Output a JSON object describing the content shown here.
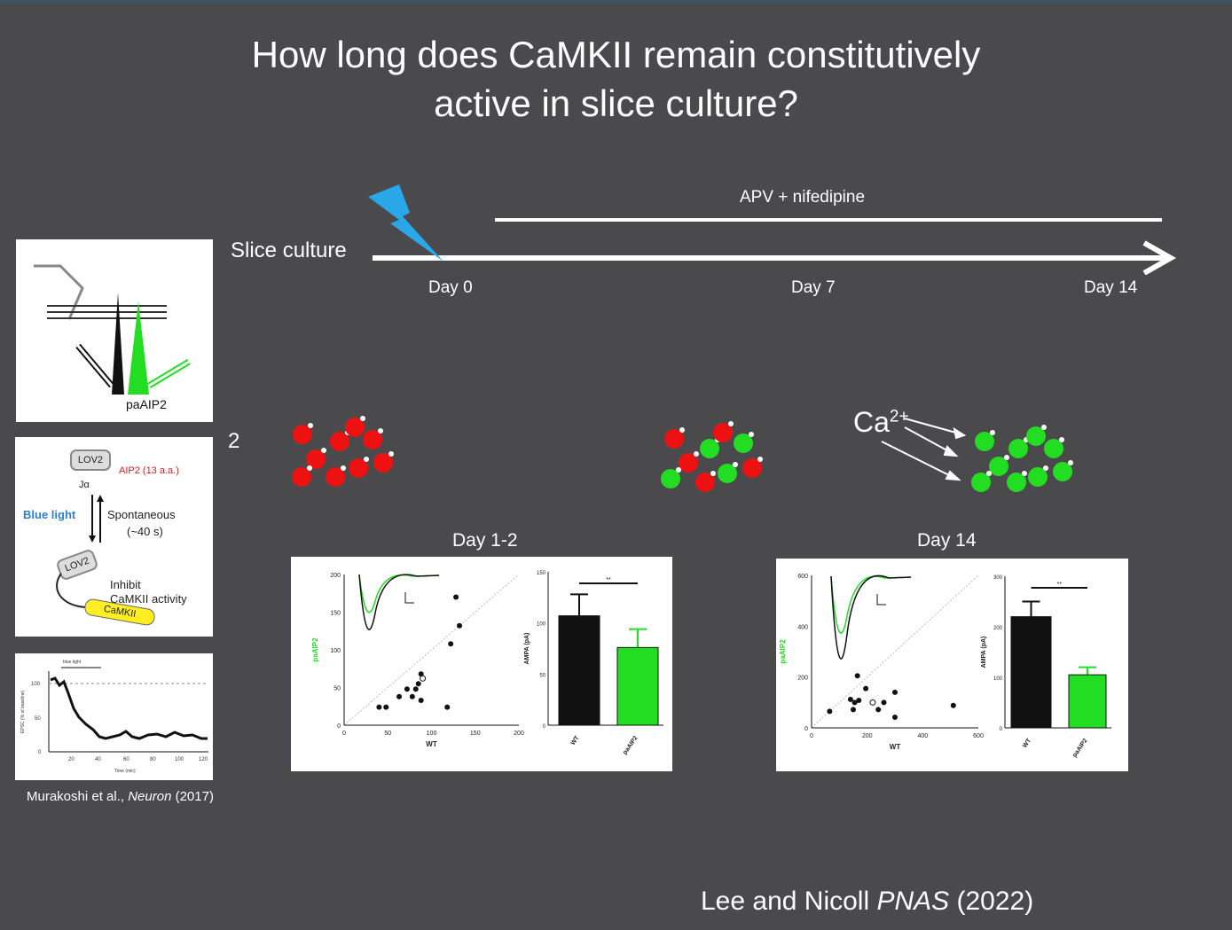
{
  "slide": {
    "title_line1": "How long does CaMKII remain constitutively",
    "title_line2": "active in slice culture?",
    "timeline": {
      "label": "Slice culture",
      "drug_label": "APV + nifedipine",
      "days": [
        "Day 0",
        "Day 7",
        "Day 14"
      ]
    },
    "ca_label": "Ca",
    "ca_sup": "2+",
    "panel_number": "2",
    "left_panels": {
      "setup_label": "paAIP2",
      "lov2_top": "LOV2",
      "aip2_label": "AIP2 (13 a.a.)",
      "ja_label": "Jα",
      "blue_light": "Blue light",
      "spontaneous": "Spontaneous",
      "spontaneous_time": "(~40 s)",
      "lov2_bottom": "LOV2",
      "inhibit_line1": "Inhibit",
      "inhibit_line2": "CaMKII activity",
      "camkii_label": "CaMKII",
      "trace_bar_label": "blue light",
      "trace_y_ticks": [
        "0",
        "50",
        "100"
      ],
      "trace_x_ticks": [
        "20",
        "40",
        "60",
        "80",
        "100",
        "120"
      ],
      "trace_ylabel": "EPSC (% of baseline)",
      "trace_xlabel": "Time (min)",
      "citation_authors": "Murakoshi et al., ",
      "citation_journal": "Neuron",
      "citation_year": " (2017)"
    },
    "citation": {
      "authors": "Lee and Nicoll ",
      "journal": "PNAS",
      "year": " (2022)"
    }
  },
  "colors": {
    "background": "#4a4a4c",
    "green": "#22dd22",
    "red": "#ee1111",
    "bolt": "#2aa7e8"
  },
  "chart_data": [
    {
      "title": "Day 1-2",
      "scatter": {
        "type": "scatter",
        "xlabel": "WT",
        "ylabel": "paAIP2",
        "xlim": [
          0,
          200
        ],
        "ylim": [
          0,
          200
        ],
        "xticks": [
          "0",
          "50",
          "100",
          "150",
          "200"
        ],
        "yticks": [
          "0",
          "50",
          "100",
          "150",
          "200"
        ],
        "points": [
          [
            40,
            24
          ],
          [
            48,
            24
          ],
          [
            63,
            38
          ],
          [
            72,
            48
          ],
          [
            78,
            38
          ],
          [
            82,
            48
          ],
          [
            85,
            55
          ],
          [
            88,
            68
          ],
          [
            88,
            33
          ],
          [
            118,
            24
          ],
          [
            122,
            108
          ],
          [
            128,
            170
          ],
          [
            132,
            132
          ]
        ],
        "mean": [
          90,
          62
        ]
      },
      "bar": {
        "type": "bar",
        "ylabel": "AMPA (pA)",
        "ylim": [
          0,
          150
        ],
        "yticks": [
          "0",
          "50",
          "100",
          "150"
        ],
        "categories": [
          "WT",
          "paAIP2"
        ],
        "values": [
          107,
          76
        ],
        "errors": [
          21,
          18
        ],
        "significance": "**"
      }
    },
    {
      "title": "Day 14",
      "scatter": {
        "type": "scatter",
        "xlabel": "WT",
        "ylabel": "paAIP2",
        "xlim": [
          0,
          600
        ],
        "ylim": [
          0,
          600
        ],
        "xticks": [
          "0",
          "200",
          "400",
          "600"
        ],
        "yticks": [
          "0",
          "200",
          "400",
          "600"
        ],
        "points": [
          [
            65,
            65
          ],
          [
            140,
            112
          ],
          [
            150,
            72
          ],
          [
            155,
            100
          ],
          [
            170,
            108
          ],
          [
            165,
            205
          ],
          [
            195,
            155
          ],
          [
            240,
            72
          ],
          [
            260,
            100
          ],
          [
            300,
            140
          ],
          [
            300,
            42
          ],
          [
            510,
            88
          ]
        ],
        "mean": [
          220,
          100
        ]
      },
      "bar": {
        "type": "bar",
        "ylabel": "AMPA (pA)",
        "ylim": [
          0,
          300
        ],
        "yticks": [
          "0",
          "100",
          "200",
          "300"
        ],
        "categories": [
          "WT",
          "paAIP2"
        ],
        "values": [
          220,
          105
        ],
        "errors": [
          30,
          15
        ],
        "significance": "**"
      }
    }
  ]
}
